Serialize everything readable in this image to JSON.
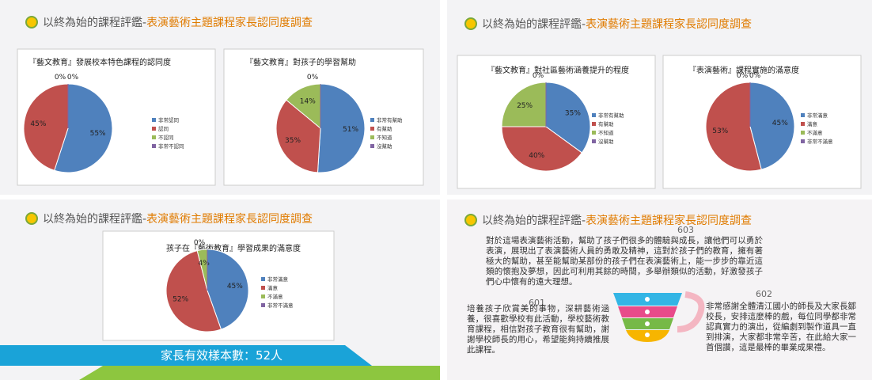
{
  "slides": [
    {
      "header": {
        "prefix": "以終為始的課程評鑑-",
        "title": "表演藝術主題課程家長認同度調查"
      },
      "charts": [
        {
          "type": "pie",
          "title": "『藝文教育』發展校本特色課程的認同度",
          "categories": [
            "非常認同",
            "認同",
            "不認同",
            "非常不認同"
          ],
          "values": [
            55,
            45,
            0,
            0
          ],
          "value_labels": [
            "55%",
            "45%",
            "0%",
            "0%"
          ],
          "colors": [
            "#4f81bd",
            "#c0504d",
            "#9bbb59",
            "#8064a2"
          ]
        },
        {
          "type": "pie",
          "title": "『藝文教育』對孩子的學習幫助",
          "categories": [
            "非常有幫助",
            "有幫助",
            "不知道",
            "沒幫助"
          ],
          "values": [
            51,
            35,
            14,
            0
          ],
          "value_labels": [
            "51%",
            "35%",
            "14%",
            "0%"
          ],
          "colors": [
            "#4f81bd",
            "#c0504d",
            "#9bbb59",
            "#8064a2"
          ]
        }
      ]
    },
    {
      "header": {
        "prefix": "以終為始的課程評鑑-",
        "title": "表演藝術主題課程家長認同度調查"
      },
      "charts": [
        {
          "type": "pie",
          "title": "『藝文教育』對社區藝術涵養提升的程度",
          "categories": [
            "非常有幫助",
            "有幫助",
            "不知道",
            "沒幫助"
          ],
          "values": [
            35,
            40,
            25,
            0
          ],
          "value_labels": [
            "35%",
            "40%",
            "25%",
            "0%"
          ],
          "colors": [
            "#4f81bd",
            "#c0504d",
            "#9bbb59",
            "#8064a2"
          ]
        },
        {
          "type": "pie",
          "title": "『表演藝術』課程實施的滿意度",
          "categories": [
            "非常滿意",
            "滿意",
            "不滿意",
            "非常不滿意"
          ],
          "values": [
            45,
            53,
            0,
            0
          ],
          "value_labels": [
            "45%",
            "53%",
            "0%",
            "0%"
          ],
          "colors": [
            "#4f81bd",
            "#c0504d",
            "#9bbb59",
            "#8064a2"
          ]
        }
      ]
    },
    {
      "header": {
        "prefix": "以終為始的課程評鑑-",
        "title": "表演藝術主題課程家長認同度調查"
      },
      "charts": [
        {
          "type": "pie",
          "title": "孩子在『藝術教育』學習成果的滿意度",
          "categories": [
            "非常滿意",
            "滿意",
            "不滿意",
            "非常不滿意"
          ],
          "values": [
            45,
            52,
            4,
            0
          ],
          "value_labels": [
            "45%",
            "52%",
            "4%",
            "0%"
          ],
          "colors": [
            "#4f81bd",
            "#c0504d",
            "#9bbb59",
            "#8064a2"
          ]
        }
      ],
      "footer": "家長有效樣本數：52人"
    },
    {
      "header": {
        "prefix": "以終為始的課程評鑑-",
        "title": "表演藝術主題課程家長認同度調查"
      },
      "comments": [
        {
          "id": "603",
          "text": "對於這場表演藝術活動，幫助了孩子們很多的體驗與成長，讓他們可以勇於表演，展現出了表演藝術人員的勇敢及精神，這對於孩子們的教育，擁有著極大的幫助，甚至能幫助某部份的孩子們在表演藝術上，能一步步的靠近這類的懷抱及夢想，因此可利用其餘的時間，多舉辦類似的活動，好激發孩子們心中懷有的遠大理想。"
        },
        {
          "id": "601",
          "text": "培養孩子欣賞美的事物，深耕藝術涵養，很喜歡學校有此活動，學校藝術教育課程，相信對孩子教育很有幫助，謝謝學校師長的用心，希望能夠持續推展此課程。"
        },
        {
          "id": "602",
          "text": "非常感謝全體清江國小的師長及大家長鄒校長，安排這麼棒的戲，每位同學都非常認真實力的演出，從編劇到製作道具一直到排演，大家都非常辛苦，在此給大家一首個讚，這是最棒的畢業成果禮。"
        }
      ]
    }
  ]
}
